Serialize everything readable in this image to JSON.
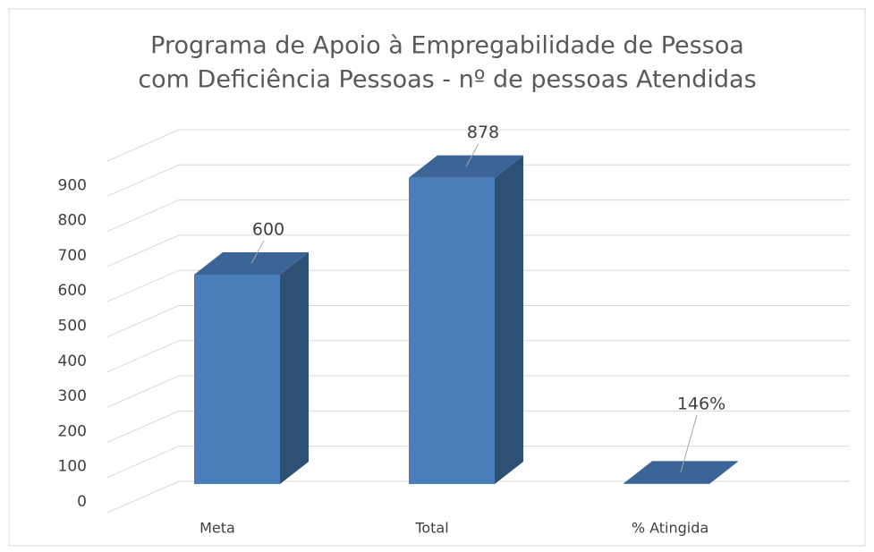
{
  "chart_data": {
    "type": "bar3d",
    "title": [
      "Programa de Apoio à Empregabilidade de Pessoa",
      "com Deficiência Pessoas - nº de pessoas Atendidas"
    ],
    "categories": [
      "Meta",
      "Total",
      "% Atingida"
    ],
    "values": [
      600,
      878,
      1.46
    ],
    "value_labels": [
      "600",
      "878",
      "146%"
    ],
    "color": "#4a7ebb",
    "ylim": [
      0,
      1000
    ],
    "yticks": [
      0,
      100,
      200,
      300,
      400,
      500,
      600,
      700,
      800,
      900
    ],
    "grid": true
  }
}
